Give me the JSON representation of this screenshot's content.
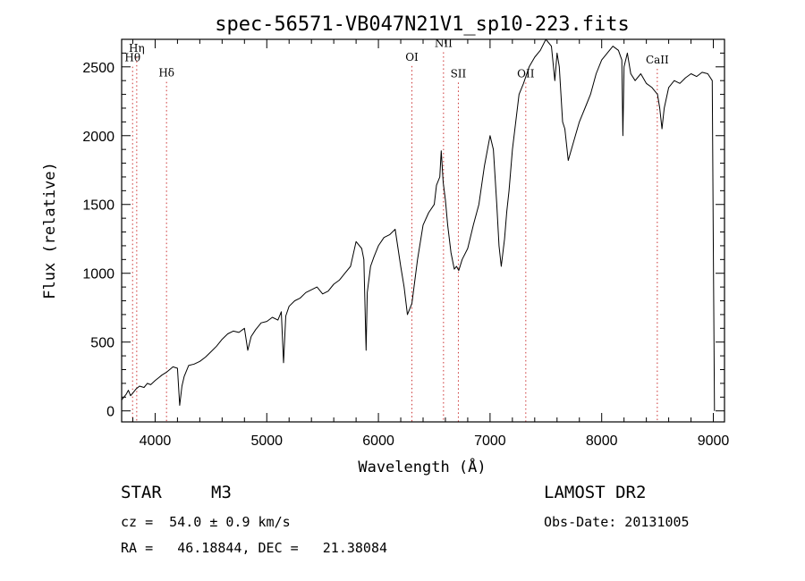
{
  "chart_data": {
    "type": "line",
    "title": "spec-56571-VB047N21V1_sp10-223.fits",
    "xlabel": "Wavelength (Å)",
    "ylabel": "Flux (relative)",
    "xlim": [
      3700,
      9100
    ],
    "ylim": [
      -80,
      2700
    ],
    "x_ticks": [
      4000,
      5000,
      6000,
      7000,
      8000,
      9000
    ],
    "y_ticks": [
      0,
      500,
      1000,
      1500,
      2000,
      2500
    ],
    "grid": false,
    "line_color": "#000000",
    "marker_color": "#cc3333",
    "series": [
      {
        "x": [
          3700,
          3720,
          3740,
          3760,
          3780,
          3800,
          3830,
          3860,
          3900,
          3930,
          3960,
          4000,
          4030,
          4060,
          4100,
          4130,
          4160,
          4200,
          4220,
          4240,
          4260,
          4300,
          4350,
          4400,
          4450,
          4500,
          4550,
          4600,
          4650,
          4700,
          4750,
          4800,
          4830,
          4860,
          4900,
          4950,
          5000,
          5050,
          5100,
          5130,
          5150,
          5170,
          5200,
          5250,
          5300,
          5350,
          5400,
          5450,
          5500,
          5550,
          5600,
          5650,
          5700,
          5750,
          5800,
          5850,
          5870,
          5890,
          5900,
          5930,
          5960,
          6000,
          6050,
          6100,
          6150,
          6200,
          6230,
          6260,
          6300,
          6350,
          6400,
          6450,
          6500,
          6520,
          6550,
          6563,
          6580,
          6600,
          6620,
          6650,
          6680,
          6700,
          6720,
          6750,
          6800,
          6850,
          6900,
          6950,
          7000,
          7030,
          7060,
          7080,
          7100,
          7130,
          7150,
          7170,
          7200,
          7230,
          7260,
          7300,
          7350,
          7400,
          7450,
          7500,
          7550,
          7580,
          7600,
          7620,
          7650,
          7670,
          7700,
          7750,
          7800,
          7850,
          7900,
          7950,
          8000,
          8050,
          8100,
          8150,
          8180,
          8190,
          8200,
          8230,
          8260,
          8300,
          8350,
          8400,
          8450,
          8500,
          8520,
          8540,
          8560,
          8600,
          8650,
          8700,
          8750,
          8800,
          8850,
          8900,
          8950,
          8990,
          9000,
          9010
        ],
        "y": [
          80,
          100,
          120,
          150,
          110,
          130,
          160,
          180,
          170,
          200,
          190,
          220,
          240,
          260,
          280,
          300,
          320,
          310,
          40,
          180,
          250,
          330,
          340,
          360,
          390,
          430,
          470,
          520,
          560,
          580,
          570,
          600,
          440,
          540,
          590,
          640,
          650,
          680,
          660,
          720,
          350,
          690,
          760,
          800,
          820,
          860,
          880,
          900,
          850,
          870,
          920,
          950,
          1000,
          1050,
          1230,
          1180,
          1100,
          440,
          860,
          1050,
          1120,
          1200,
          1260,
          1280,
          1320,
          1050,
          900,
          700,
          780,
          1100,
          1350,
          1440,
          1500,
          1640,
          1700,
          1890,
          1660,
          1530,
          1350,
          1150,
          1030,
          1050,
          1020,
          1100,
          1180,
          1350,
          1500,
          1780,
          2000,
          1900,
          1500,
          1200,
          1050,
          1250,
          1450,
          1600,
          1900,
          2100,
          2300,
          2380,
          2500,
          2570,
          2620,
          2700,
          2650,
          2400,
          2600,
          2500,
          2100,
          2050,
          1820,
          1960,
          2100,
          2200,
          2300,
          2450,
          2550,
          2600,
          2650,
          2620,
          2550,
          2000,
          2500,
          2600,
          2450,
          2400,
          2450,
          2380,
          2350,
          2300,
          2200,
          2050,
          2200,
          2350,
          2400,
          2380,
          2420,
          2450,
          2430,
          2460,
          2450,
          2400,
          1200,
          0
        ]
      }
    ],
    "spectral_lines": [
      {
        "name": "Hη",
        "x": 3835,
        "label_y": 2610
      },
      {
        "name": "Hθ",
        "x": 3798,
        "label_y": 2540
      },
      {
        "name": "Hδ",
        "x": 4102,
        "label_y": 2430
      },
      {
        "name": "OI",
        "x": 6300,
        "label_y": 2545
      },
      {
        "name": "NII",
        "x": 6583,
        "label_y": 2645
      },
      {
        "name": "SII",
        "x": 6716,
        "label_y": 2425
      },
      {
        "name": "OII",
        "x": 7320,
        "label_y": 2425
      },
      {
        "name": "CaII",
        "x": 8498,
        "label_y": 2525
      }
    ]
  },
  "info": {
    "object_class": "STAR",
    "subclass": "M3",
    "survey": "LAMOST DR2",
    "redshift": "cz =  54.0 ± 0.9 km/s",
    "obs_date": "Obs-Date: 20131005",
    "coords": "RA =   46.18844, DEC =   21.38084"
  }
}
